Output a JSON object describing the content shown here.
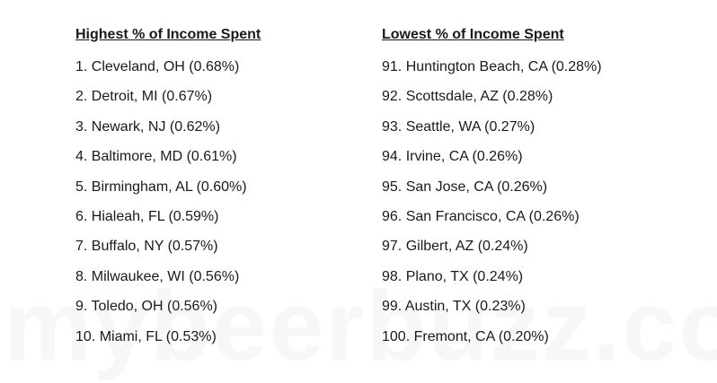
{
  "watermark": "mybeerbuzz.com",
  "highest": {
    "heading": "Highest % of Income Spent",
    "items": [
      "1. Cleveland, OH (0.68%)",
      "2. Detroit, MI (0.67%)",
      "3. Newark, NJ (0.62%)",
      "4. Baltimore, MD (0.61%)",
      "5. Birmingham, AL (0.60%)",
      "6. Hialeah, FL (0.59%)",
      "7. Buffalo, NY (0.57%)",
      "8. Milwaukee, WI (0.56%)",
      "9. Toledo, OH (0.56%)",
      "10. Miami, FL (0.53%)"
    ]
  },
  "lowest": {
    "heading": "Lowest % of Income Spent",
    "items": [
      "91. Huntington Beach, CA (0.28%)",
      "92. Scottsdale, AZ (0.28%)",
      "93. Seattle, WA (0.27%)",
      "94. Irvine, CA (0.26%)",
      "95. San Jose, CA (0.26%)",
      "96. San Francisco, CA (0.26%)",
      "97. Gilbert, AZ (0.24%)",
      "98. Plano, TX (0.24%)",
      "99. Austin, TX (0.23%)",
      "100. Fremont, CA (0.20%)"
    ]
  }
}
